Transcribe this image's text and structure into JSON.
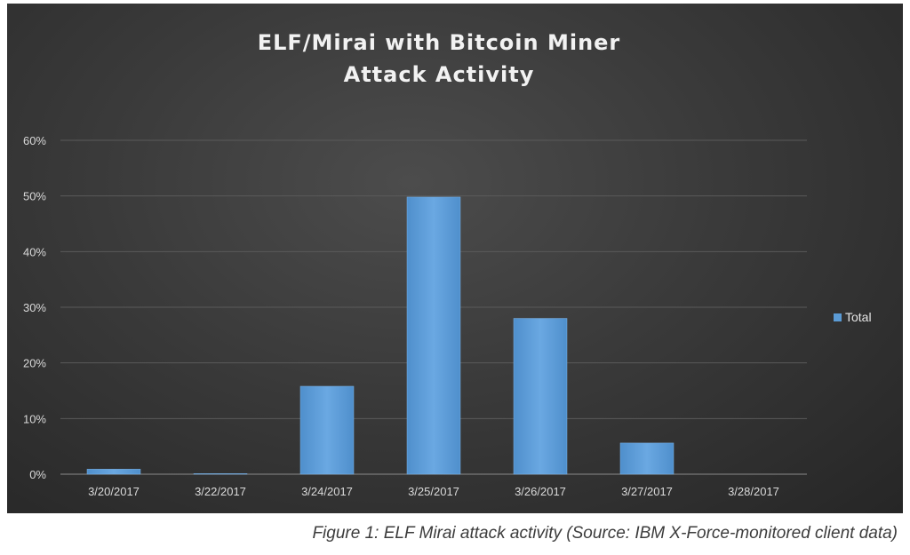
{
  "chart_data": {
    "type": "bar",
    "title_lines": [
      "ELF/Mirai with Bitcoin Miner",
      "Attack Activity"
    ],
    "categories": [
      "3/20/2017",
      "3/22/2017",
      "3/24/2017",
      "3/25/2017",
      "3/26/2017",
      "3/27/2017",
      "3/28/2017"
    ],
    "series": [
      {
        "name": "Total",
        "values": [
          0.9,
          0.1,
          15.8,
          49.8,
          28.0,
          5.6,
          0.0
        ]
      }
    ],
    "yticks": [
      "0%",
      "10%",
      "20%",
      "30%",
      "40%",
      "50%",
      "60%"
    ],
    "ylim": [
      0,
      60
    ],
    "y_unit": "%",
    "grid": true,
    "legend_position": "right",
    "bar_color": "#5b9bd5",
    "background_color": "#3a3a3a"
  },
  "caption": "Figure 1: ELF Mirai attack activity (Source: IBM X-Force-monitored client data)"
}
